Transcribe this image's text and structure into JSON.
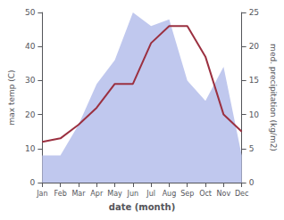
{
  "chart_data": {
    "type": "line",
    "categories": [
      "Jan",
      "Feb",
      "Mar",
      "Apr",
      "May",
      "Jun",
      "Jul",
      "Aug",
      "Sep",
      "Oct",
      "Nov",
      "Dec"
    ],
    "series": [
      {
        "type": "area",
        "color": "#c0c8ee",
        "axis": "y2",
        "values": [
          4,
          4,
          8.5,
          14.5,
          18,
          25,
          23,
          24,
          15,
          12,
          17,
          4
        ]
      },
      {
        "type": "line",
        "color": "#9b3040",
        "values": [
          12,
          13,
          17,
          22,
          29,
          29,
          41,
          46,
          46,
          37,
          20,
          15
        ]
      }
    ],
    "xlabel": "date (month)",
    "ylabel": "max temp (C)",
    "y2label": "med. precipitation (kg/m2)",
    "ylim": [
      0,
      50
    ],
    "yticks": [
      0,
      10,
      20,
      30,
      40,
      50
    ],
    "y2lim": [
      0,
      25
    ],
    "y2ticks": [
      0,
      5,
      10,
      15,
      20,
      25
    ],
    "grid": false
  }
}
